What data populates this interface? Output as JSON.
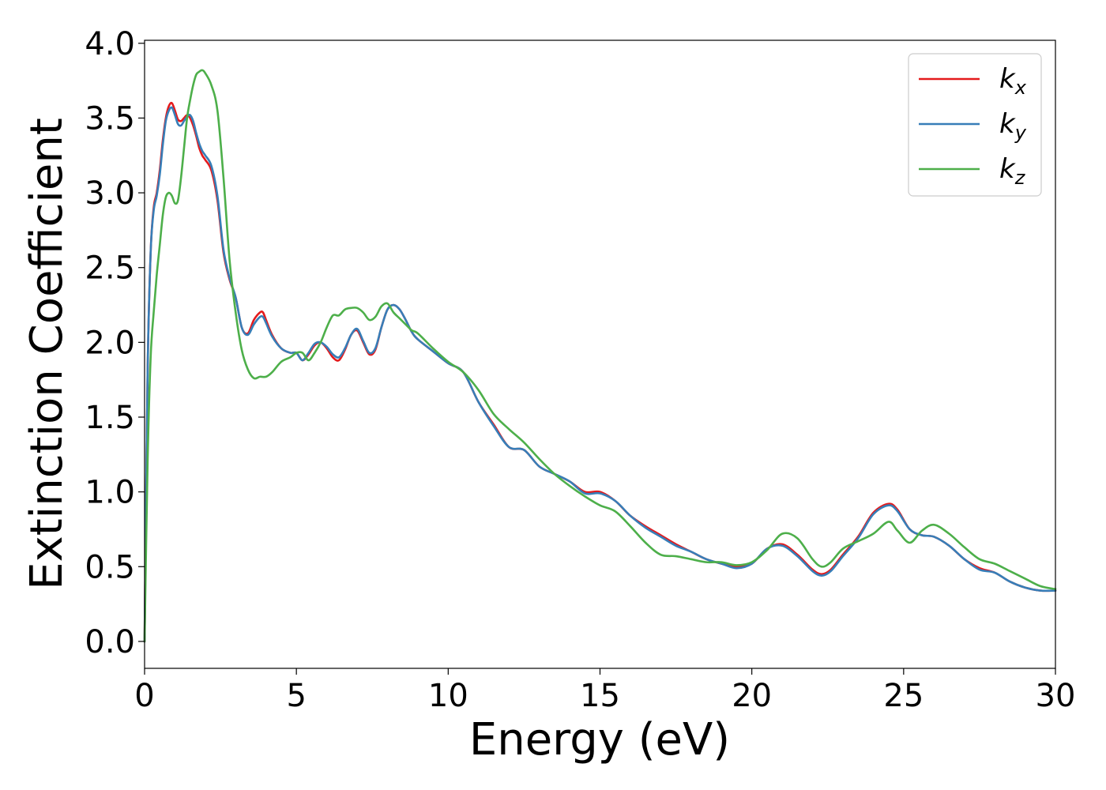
{
  "chart_data": {
    "type": "line",
    "title": "",
    "xlabel": "Energy (eV)",
    "ylabel": "Extinction Coefficient",
    "xlim": [
      0,
      30
    ],
    "ylim": [
      -0.18,
      4.02
    ],
    "xticks": [
      0,
      5,
      10,
      15,
      20,
      25,
      30
    ],
    "xtick_labels": [
      "0",
      "5",
      "10",
      "15",
      "20",
      "25",
      "30"
    ],
    "yticks": [
      0.0,
      0.5,
      1.0,
      1.5,
      2.0,
      2.5,
      3.0,
      3.5,
      4.0
    ],
    "ytick_labels": [
      "0.0",
      "0.5",
      "1.0",
      "1.5",
      "2.0",
      "2.5",
      "3.0",
      "3.5",
      "4.0"
    ],
    "grid": false,
    "legend_position": "top-right",
    "series": [
      {
        "name": "k_x",
        "label_main": "k",
        "label_sub": "x",
        "color": "#e41a1c",
        "x": [
          0,
          0.1,
          0.2,
          0.3,
          0.4,
          0.5,
          0.6,
          0.7,
          0.8,
          0.9,
          1.0,
          1.1,
          1.2,
          1.3,
          1.4,
          1.5,
          1.6,
          1.7,
          1.8,
          1.9,
          2.0,
          2.2,
          2.4,
          2.6,
          2.8,
          3.0,
          3.2,
          3.4,
          3.6,
          3.8,
          3.9,
          4.0,
          4.2,
          4.5,
          4.8,
          5.0,
          5.2,
          5.4,
          5.6,
          5.8,
          6.0,
          6.2,
          6.4,
          6.6,
          6.8,
          7.0,
          7.2,
          7.4,
          7.6,
          7.8,
          8.0,
          8.2,
          8.4,
          8.6,
          8.8,
          9.0,
          9.5,
          10.0,
          10.5,
          11.0,
          11.5,
          12.0,
          12.5,
          13.0,
          13.5,
          14.0,
          14.5,
          15.0,
          15.5,
          16.0,
          16.5,
          17.0,
          17.5,
          18.0,
          18.5,
          19.0,
          19.5,
          20.0,
          20.5,
          21.0,
          21.5,
          22.0,
          22.3,
          22.6,
          23.0,
          23.5,
          24.0,
          24.5,
          24.8,
          25.2,
          25.6,
          26.0,
          26.5,
          27.0,
          27.5,
          28.0,
          28.5,
          29.0,
          29.5,
          30.0
        ],
        "y": [
          0.0,
          1.8,
          2.6,
          2.9,
          3.0,
          3.15,
          3.35,
          3.5,
          3.58,
          3.6,
          3.55,
          3.49,
          3.48,
          3.5,
          3.52,
          3.5,
          3.45,
          3.38,
          3.3,
          3.25,
          3.22,
          3.15,
          2.95,
          2.6,
          2.42,
          2.3,
          2.1,
          2.06,
          2.15,
          2.2,
          2.2,
          2.15,
          2.05,
          1.96,
          1.93,
          1.93,
          1.88,
          1.92,
          1.98,
          2.0,
          1.96,
          1.9,
          1.88,
          1.95,
          2.05,
          2.08,
          2.0,
          1.92,
          1.95,
          2.1,
          2.22,
          2.25,
          2.22,
          2.15,
          2.07,
          2.02,
          1.94,
          1.86,
          1.8,
          1.6,
          1.45,
          1.3,
          1.28,
          1.17,
          1.12,
          1.07,
          1.0,
          1.0,
          0.94,
          0.84,
          0.77,
          0.71,
          0.65,
          0.6,
          0.55,
          0.52,
          0.5,
          0.52,
          0.62,
          0.65,
          0.58,
          0.48,
          0.45,
          0.48,
          0.58,
          0.7,
          0.86,
          0.92,
          0.88,
          0.75,
          0.71,
          0.7,
          0.64,
          0.55,
          0.49,
          0.46,
          0.4,
          0.36,
          0.34,
          0.34
        ]
      },
      {
        "name": "k_y",
        "label_main": "k",
        "label_sub": "y",
        "color": "#377eb8",
        "x": [
          0,
          0.1,
          0.2,
          0.3,
          0.4,
          0.5,
          0.6,
          0.7,
          0.8,
          0.9,
          1.0,
          1.1,
          1.2,
          1.3,
          1.4,
          1.5,
          1.6,
          1.7,
          1.8,
          1.9,
          2.0,
          2.2,
          2.4,
          2.6,
          2.8,
          3.0,
          3.2,
          3.4,
          3.6,
          3.8,
          3.9,
          4.0,
          4.2,
          4.5,
          4.8,
          5.0,
          5.2,
          5.4,
          5.6,
          5.8,
          6.0,
          6.2,
          6.4,
          6.6,
          6.8,
          7.0,
          7.2,
          7.4,
          7.6,
          7.8,
          8.0,
          8.2,
          8.4,
          8.6,
          8.8,
          9.0,
          9.5,
          10.0,
          10.5,
          11.0,
          11.5,
          12.0,
          12.5,
          13.0,
          13.5,
          14.0,
          14.5,
          15.0,
          15.5,
          16.0,
          16.5,
          17.0,
          17.5,
          18.0,
          18.5,
          19.0,
          19.5,
          20.0,
          20.5,
          21.0,
          21.5,
          22.0,
          22.3,
          22.6,
          23.0,
          23.5,
          24.0,
          24.5,
          24.8,
          25.2,
          25.6,
          26.0,
          26.5,
          27.0,
          27.5,
          28.0,
          28.5,
          29.0,
          29.5,
          30.0
        ],
        "y": [
          0.0,
          1.8,
          2.6,
          2.88,
          2.98,
          3.12,
          3.32,
          3.48,
          3.55,
          3.57,
          3.52,
          3.46,
          3.45,
          3.48,
          3.51,
          3.52,
          3.48,
          3.4,
          3.33,
          3.28,
          3.25,
          3.18,
          2.98,
          2.62,
          2.43,
          2.3,
          2.1,
          2.05,
          2.12,
          2.17,
          2.17,
          2.13,
          2.04,
          1.96,
          1.93,
          1.93,
          1.88,
          1.93,
          1.99,
          2.0,
          1.97,
          1.92,
          1.9,
          1.96,
          2.05,
          2.09,
          2.01,
          1.93,
          1.96,
          2.1,
          2.22,
          2.25,
          2.22,
          2.15,
          2.07,
          2.02,
          1.94,
          1.86,
          1.8,
          1.6,
          1.44,
          1.3,
          1.28,
          1.17,
          1.12,
          1.07,
          0.99,
          0.99,
          0.94,
          0.84,
          0.76,
          0.7,
          0.64,
          0.6,
          0.55,
          0.52,
          0.49,
          0.52,
          0.62,
          0.64,
          0.57,
          0.47,
          0.44,
          0.47,
          0.57,
          0.69,
          0.85,
          0.91,
          0.87,
          0.75,
          0.71,
          0.7,
          0.64,
          0.55,
          0.48,
          0.46,
          0.4,
          0.36,
          0.34,
          0.34
        ]
      },
      {
        "name": "k_z",
        "label_main": "k",
        "label_sub": "z",
        "color": "#4daf4a",
        "x": [
          0,
          0.1,
          0.2,
          0.3,
          0.4,
          0.5,
          0.6,
          0.7,
          0.8,
          0.9,
          1.0,
          1.1,
          1.2,
          1.3,
          1.4,
          1.5,
          1.6,
          1.7,
          1.8,
          1.9,
          2.0,
          2.2,
          2.4,
          2.6,
          2.8,
          3.0,
          3.2,
          3.4,
          3.6,
          3.8,
          4.0,
          4.2,
          4.5,
          4.8,
          5.0,
          5.2,
          5.4,
          5.6,
          5.8,
          6.0,
          6.2,
          6.4,
          6.6,
          6.8,
          7.0,
          7.2,
          7.4,
          7.6,
          7.8,
          8.0,
          8.2,
          8.4,
          8.6,
          8.8,
          9.0,
          9.5,
          10.0,
          10.5,
          11.0,
          11.5,
          12.0,
          12.5,
          13.0,
          13.5,
          14.0,
          14.5,
          15.0,
          15.5,
          16.0,
          16.5,
          17.0,
          17.5,
          18.0,
          18.5,
          19.0,
          19.5,
          20.0,
          20.5,
          21.0,
          21.5,
          22.0,
          22.3,
          22.6,
          23.0,
          23.5,
          24.0,
          24.5,
          24.8,
          25.2,
          25.6,
          26.0,
          26.5,
          27.0,
          27.5,
          28.0,
          28.5,
          29.0,
          29.5,
          30.0
        ],
        "y": [
          0.0,
          1.2,
          1.9,
          2.2,
          2.45,
          2.65,
          2.85,
          2.97,
          3.0,
          2.98,
          2.93,
          2.95,
          3.1,
          3.3,
          3.5,
          3.62,
          3.72,
          3.79,
          3.81,
          3.82,
          3.8,
          3.72,
          3.55,
          3.1,
          2.55,
          2.2,
          1.95,
          1.82,
          1.76,
          1.77,
          1.77,
          1.8,
          1.87,
          1.9,
          1.93,
          1.93,
          1.88,
          1.93,
          2.0,
          2.1,
          2.18,
          2.18,
          2.22,
          2.23,
          2.23,
          2.2,
          2.15,
          2.17,
          2.24,
          2.26,
          2.2,
          2.16,
          2.12,
          2.08,
          2.06,
          1.96,
          1.87,
          1.8,
          1.68,
          1.52,
          1.42,
          1.33,
          1.22,
          1.12,
          1.04,
          0.97,
          0.91,
          0.87,
          0.77,
          0.66,
          0.58,
          0.57,
          0.55,
          0.53,
          0.53,
          0.51,
          0.53,
          0.61,
          0.72,
          0.69,
          0.55,
          0.5,
          0.53,
          0.62,
          0.67,
          0.72,
          0.8,
          0.74,
          0.66,
          0.74,
          0.78,
          0.72,
          0.63,
          0.55,
          0.52,
          0.47,
          0.42,
          0.37,
          0.35
        ]
      }
    ]
  }
}
